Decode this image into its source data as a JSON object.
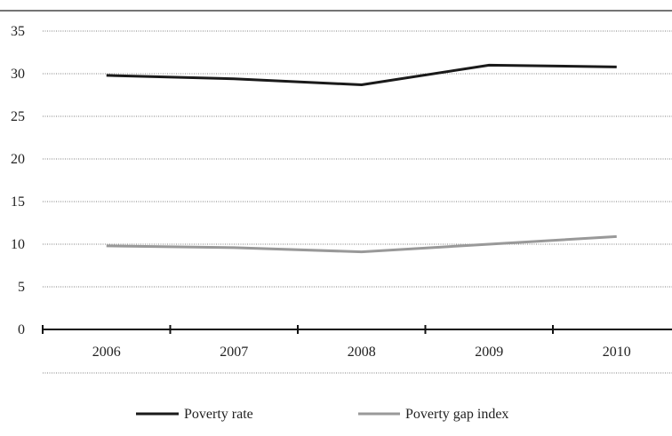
{
  "chart_data": {
    "type": "line",
    "title": "",
    "xlabel": "",
    "ylabel": "",
    "categories": [
      "2006",
      "2007",
      "2008",
      "2009",
      "2010"
    ],
    "ylim": [
      0,
      35
    ],
    "yticks": [
      0,
      5,
      10,
      15,
      20,
      25,
      30,
      35
    ],
    "grid": true,
    "legend_position": "bottom",
    "series": [
      {
        "name": "Poverty rate",
        "color": "#1a1a1a",
        "values": [
          29.8,
          29.4,
          28.7,
          31.0,
          30.8
        ]
      },
      {
        "name": "Poverty gap index",
        "color": "#999999",
        "values": [
          9.8,
          9.6,
          9.1,
          10.0,
          10.9
        ]
      }
    ]
  }
}
